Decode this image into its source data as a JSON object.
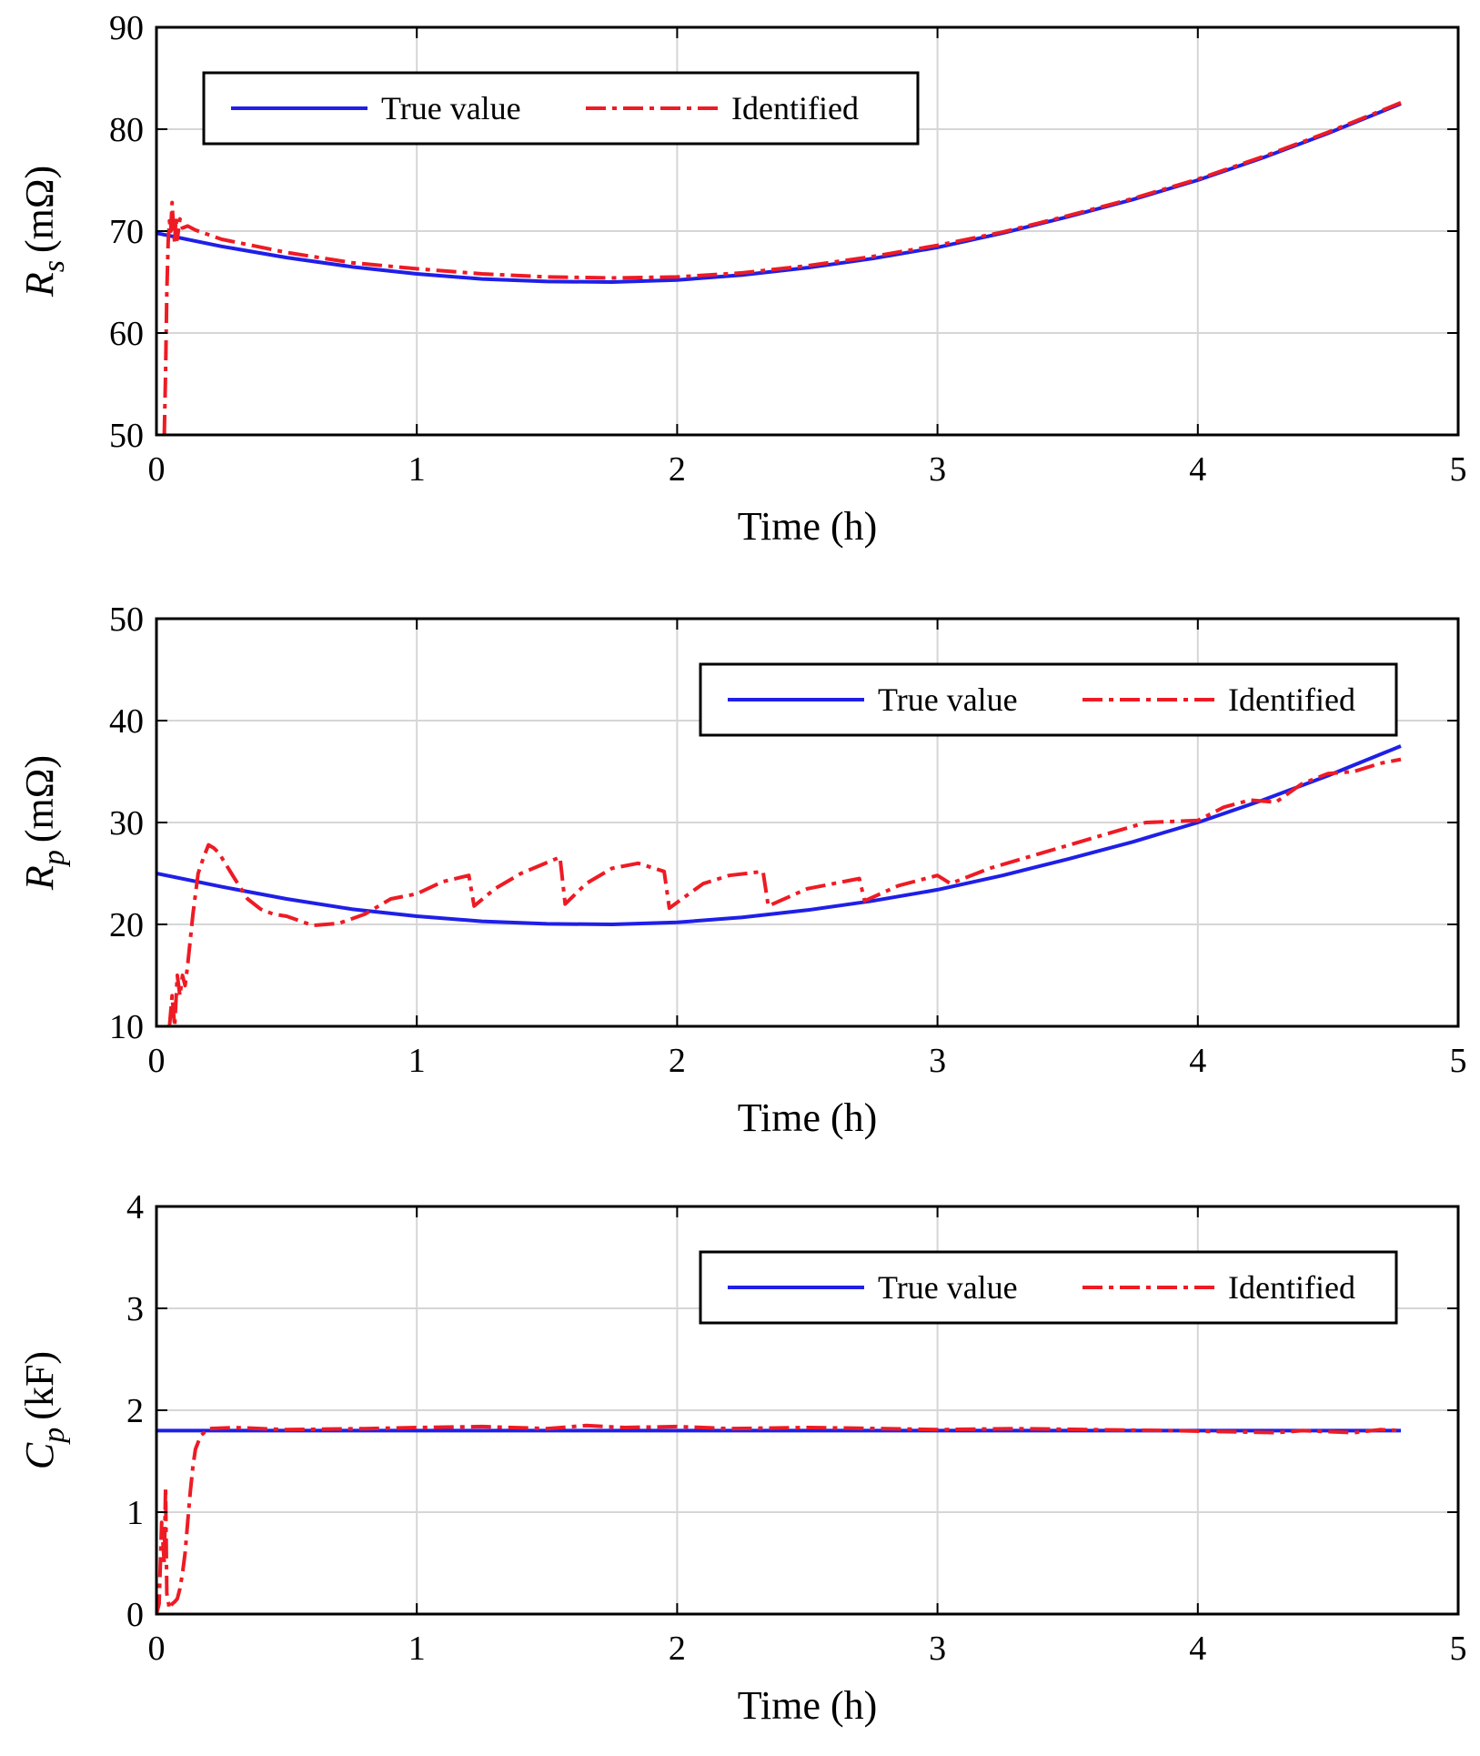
{
  "figure": {
    "colors": {
      "true": "#1f1fe8",
      "identified": "#ee1b24",
      "grid": "#d6d6d6",
      "frame": "#000000"
    },
    "legend_labels": [
      "True value",
      "Identified"
    ]
  },
  "chart_data": [
    {
      "type": "line",
      "ylabel_main": "R",
      "ylabel_sub": "s",
      "ylabel_unit": "(mΩ)",
      "xlabel": "Time (h)",
      "xlim": [
        0,
        5
      ],
      "ylim": [
        50,
        90
      ],
      "xticks": [
        0,
        1,
        2,
        3,
        4,
        5
      ],
      "yticks": [
        50,
        60,
        70,
        80,
        90
      ],
      "grid": true,
      "legend": "top-left",
      "series": [
        {
          "name": "True value",
          "style": "solid",
          "x": [
            0,
            0.25,
            0.5,
            0.75,
            1.0,
            1.25,
            1.5,
            1.75,
            2.0,
            2.25,
            2.5,
            2.75,
            3.0,
            3.25,
            3.5,
            3.75,
            4.0,
            4.25,
            4.5,
            4.78
          ],
          "y": [
            69.8,
            68.5,
            67.4,
            66.5,
            65.8,
            65.3,
            65.05,
            65.0,
            65.2,
            65.7,
            66.4,
            67.3,
            68.4,
            69.8,
            71.4,
            73.1,
            75.0,
            77.2,
            79.6,
            82.5
          ]
        },
        {
          "name": "Identified",
          "style": "dashdot",
          "x": [
            0.03,
            0.035,
            0.04,
            0.045,
            0.05,
            0.055,
            0.06,
            0.065,
            0.07,
            0.075,
            0.08,
            0.09,
            0.1,
            0.12,
            0.15,
            0.25,
            0.5,
            0.75,
            1.0,
            1.25,
            1.5,
            1.75,
            2.0,
            2.25,
            2.5,
            2.75,
            3.0,
            3.25,
            3.5,
            3.75,
            4.0,
            4.25,
            4.5,
            4.78
          ],
          "y": [
            50,
            56,
            64,
            69,
            71,
            70,
            72.8,
            70.5,
            68.8,
            71.5,
            69.2,
            71.2,
            70.3,
            70.5,
            70.1,
            69.2,
            67.9,
            66.9,
            66.3,
            65.8,
            65.5,
            65.4,
            65.5,
            65.9,
            66.6,
            67.5,
            68.6,
            69.9,
            71.5,
            73.2,
            75.1,
            77.3,
            79.7,
            82.6
          ]
        }
      ]
    },
    {
      "type": "line",
      "ylabel_main": "R",
      "ylabel_sub": "p",
      "ylabel_unit": "(mΩ)",
      "xlabel": "Time (h)",
      "xlim": [
        0,
        5
      ],
      "ylim": [
        10,
        50
      ],
      "xticks": [
        0,
        1,
        2,
        3,
        4,
        5
      ],
      "yticks": [
        10,
        20,
        30,
        40,
        50
      ],
      "grid": true,
      "legend": "top-right",
      "series": [
        {
          "name": "True value",
          "style": "solid",
          "x": [
            0,
            0.25,
            0.5,
            0.75,
            1.0,
            1.25,
            1.5,
            1.75,
            2.0,
            2.25,
            2.5,
            2.75,
            3.0,
            3.25,
            3.5,
            3.75,
            4.0,
            4.25,
            4.5,
            4.78
          ],
          "y": [
            25.0,
            23.7,
            22.5,
            21.5,
            20.8,
            20.3,
            20.05,
            20.0,
            20.2,
            20.7,
            21.4,
            22.3,
            23.4,
            24.8,
            26.4,
            28.1,
            30.0,
            32.2,
            34.6,
            37.5
          ]
        },
        {
          "name": "Identified",
          "style": "dashdot",
          "x": [
            0.05,
            0.06,
            0.07,
            0.08,
            0.09,
            0.1,
            0.11,
            0.12,
            0.14,
            0.16,
            0.18,
            0.2,
            0.22,
            0.24,
            0.3,
            0.35,
            0.4,
            0.45,
            0.5,
            0.6,
            0.7,
            0.8,
            0.9,
            1.0,
            1.1,
            1.2,
            1.22,
            1.3,
            1.4,
            1.55,
            1.57,
            1.65,
            1.75,
            1.85,
            1.95,
            1.97,
            2.1,
            2.2,
            2.33,
            2.35,
            2.5,
            2.6,
            2.7,
            2.72,
            2.85,
            3.0,
            3.05,
            3.2,
            3.4,
            3.6,
            3.8,
            4.0,
            4.1,
            4.2,
            4.3,
            4.4,
            4.5,
            4.6,
            4.7,
            4.78
          ],
          "y": [
            10,
            13,
            10,
            15,
            13,
            15,
            14,
            16,
            21,
            25,
            26.5,
            27.8,
            27.5,
            27.0,
            24.5,
            22.5,
            21.5,
            21.0,
            20.8,
            19.9,
            20.1,
            21.0,
            22.5,
            23.0,
            24.2,
            24.8,
            21.8,
            23.5,
            25.0,
            26.6,
            22.0,
            24.0,
            25.5,
            26.0,
            25.2,
            21.6,
            24.0,
            24.8,
            25.2,
            21.8,
            23.5,
            24.0,
            24.5,
            22.3,
            23.8,
            24.8,
            24.0,
            25.5,
            27.0,
            28.5,
            30.0,
            30.2,
            31.5,
            32.2,
            32.0,
            33.8,
            34.8,
            35.0,
            35.8,
            36.2
          ]
        }
      ]
    },
    {
      "type": "line",
      "ylabel_main": "C",
      "ylabel_sub": "p",
      "ylabel_unit": "(kF)",
      "xlabel": "Time (h)",
      "xlim": [
        0,
        5
      ],
      "ylim": [
        0,
        4
      ],
      "xticks": [
        0,
        1,
        2,
        3,
        4,
        5
      ],
      "yticks": [
        0,
        1,
        2,
        3,
        4
      ],
      "grid": true,
      "legend": "top-right",
      "series": [
        {
          "name": "True value",
          "style": "solid",
          "x": [
            0,
            4.78
          ],
          "y": [
            1.8,
            1.8
          ]
        },
        {
          "name": "Identified",
          "style": "dashdot",
          "x": [
            0.0,
            0.01,
            0.02,
            0.03,
            0.035,
            0.04,
            0.05,
            0.06,
            0.07,
            0.08,
            0.09,
            0.1,
            0.11,
            0.12,
            0.13,
            0.14,
            0.15,
            0.17,
            0.2,
            0.3,
            0.5,
            0.8,
            1.0,
            1.25,
            1.5,
            1.65,
            1.8,
            2.0,
            2.2,
            2.5,
            2.8,
            3.0,
            3.3,
            3.6,
            3.9,
            4.1,
            4.3,
            4.4,
            4.5,
            4.6,
            4.7,
            4.78
          ],
          "y": [
            0.0,
            0.1,
            0.9,
            0.5,
            1.25,
            0.2,
            0.05,
            0.1,
            0.12,
            0.15,
            0.25,
            0.4,
            0.6,
            0.9,
            1.2,
            1.45,
            1.62,
            1.75,
            1.82,
            1.83,
            1.81,
            1.82,
            1.83,
            1.84,
            1.82,
            1.85,
            1.83,
            1.84,
            1.82,
            1.83,
            1.82,
            1.81,
            1.82,
            1.81,
            1.8,
            1.79,
            1.78,
            1.8,
            1.79,
            1.78,
            1.81,
            1.8
          ]
        }
      ]
    }
  ]
}
